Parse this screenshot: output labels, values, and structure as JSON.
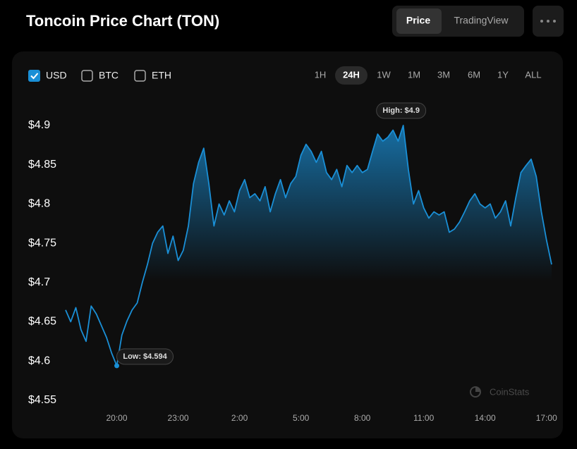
{
  "header": {
    "title": "Toncoin Price Chart (TON)",
    "tabs": [
      "Price",
      "TradingView"
    ],
    "active_tab": 0
  },
  "controls": {
    "currencies": [
      {
        "label": "USD",
        "checked": true
      },
      {
        "label": "BTC",
        "checked": false
      },
      {
        "label": "ETH",
        "checked": false
      }
    ],
    "ranges": [
      "1H",
      "24H",
      "1W",
      "1M",
      "3M",
      "6M",
      "1Y",
      "ALL"
    ],
    "active_range": 1
  },
  "watermark": "CoinStats",
  "chart_data": {
    "type": "area",
    "color": "#1a8fd6",
    "categories": [
      null,
      null,
      null,
      null,
      null,
      null,
      null,
      null,
      null,
      null,
      "20:00",
      null,
      null,
      null,
      null,
      null,
      null,
      null,
      null,
      null,
      null,
      null,
      "23:00",
      null,
      null,
      null,
      null,
      null,
      null,
      null,
      null,
      null,
      null,
      null,
      "2:00",
      null,
      null,
      null,
      null,
      null,
      null,
      null,
      null,
      null,
      null,
      null,
      "5:00",
      null,
      null,
      null,
      null,
      null,
      null,
      null,
      null,
      null,
      null,
      null,
      "8:00",
      null,
      null,
      null,
      null,
      null,
      null,
      null,
      null,
      null,
      null,
      null,
      "11:00",
      null,
      null,
      null,
      null,
      null,
      null,
      null,
      null,
      null,
      null,
      null,
      "14:00",
      null,
      null,
      null,
      null,
      null,
      null,
      null,
      null,
      null,
      null,
      null,
      "17:00",
      null
    ],
    "values": [
      4.665,
      4.65,
      4.668,
      4.64,
      4.625,
      4.67,
      4.66,
      4.645,
      4.63,
      4.61,
      4.594,
      4.633,
      4.651,
      4.665,
      4.674,
      4.7,
      4.723,
      4.75,
      4.764,
      4.772,
      4.737,
      4.759,
      4.728,
      4.741,
      4.772,
      4.826,
      4.853,
      4.871,
      4.826,
      4.772,
      4.8,
      4.786,
      4.804,
      4.79,
      4.817,
      4.831,
      4.808,
      4.813,
      4.804,
      4.822,
      4.79,
      4.813,
      4.831,
      4.808,
      4.826,
      4.835,
      4.862,
      4.876,
      4.867,
      4.853,
      4.867,
      4.84,
      4.831,
      4.844,
      4.822,
      4.849,
      4.84,
      4.849,
      4.84,
      4.844,
      4.867,
      4.889,
      4.88,
      4.885,
      4.894,
      4.88,
      4.9,
      4.844,
      4.8,
      4.817,
      4.795,
      4.782,
      4.79,
      4.786,
      4.79,
      4.764,
      4.768,
      4.777,
      4.79,
      4.804,
      4.813,
      4.8,
      4.795,
      4.8,
      4.782,
      4.79,
      4.804,
      4.772,
      4.808,
      4.84,
      4.849,
      4.857,
      4.835,
      4.79,
      4.754,
      4.723
    ],
    "annotations": [
      "High: $4.9",
      "Low: $4.594"
    ],
    "ylim": [
      4.54,
      4.92
    ],
    "yticks": [
      {
        "value": 4.55,
        "label": "$4.55"
      },
      {
        "value": 4.6,
        "label": "$4.6"
      },
      {
        "value": 4.65,
        "label": "$4.65"
      },
      {
        "value": 4.7,
        "label": "$4.7"
      },
      {
        "value": 4.75,
        "label": "$4.75"
      },
      {
        "value": 4.8,
        "label": "$4.8"
      },
      {
        "value": 4.85,
        "label": "$4.85"
      },
      {
        "value": 4.9,
        "label": "$4.9"
      }
    ],
    "grid": false
  }
}
